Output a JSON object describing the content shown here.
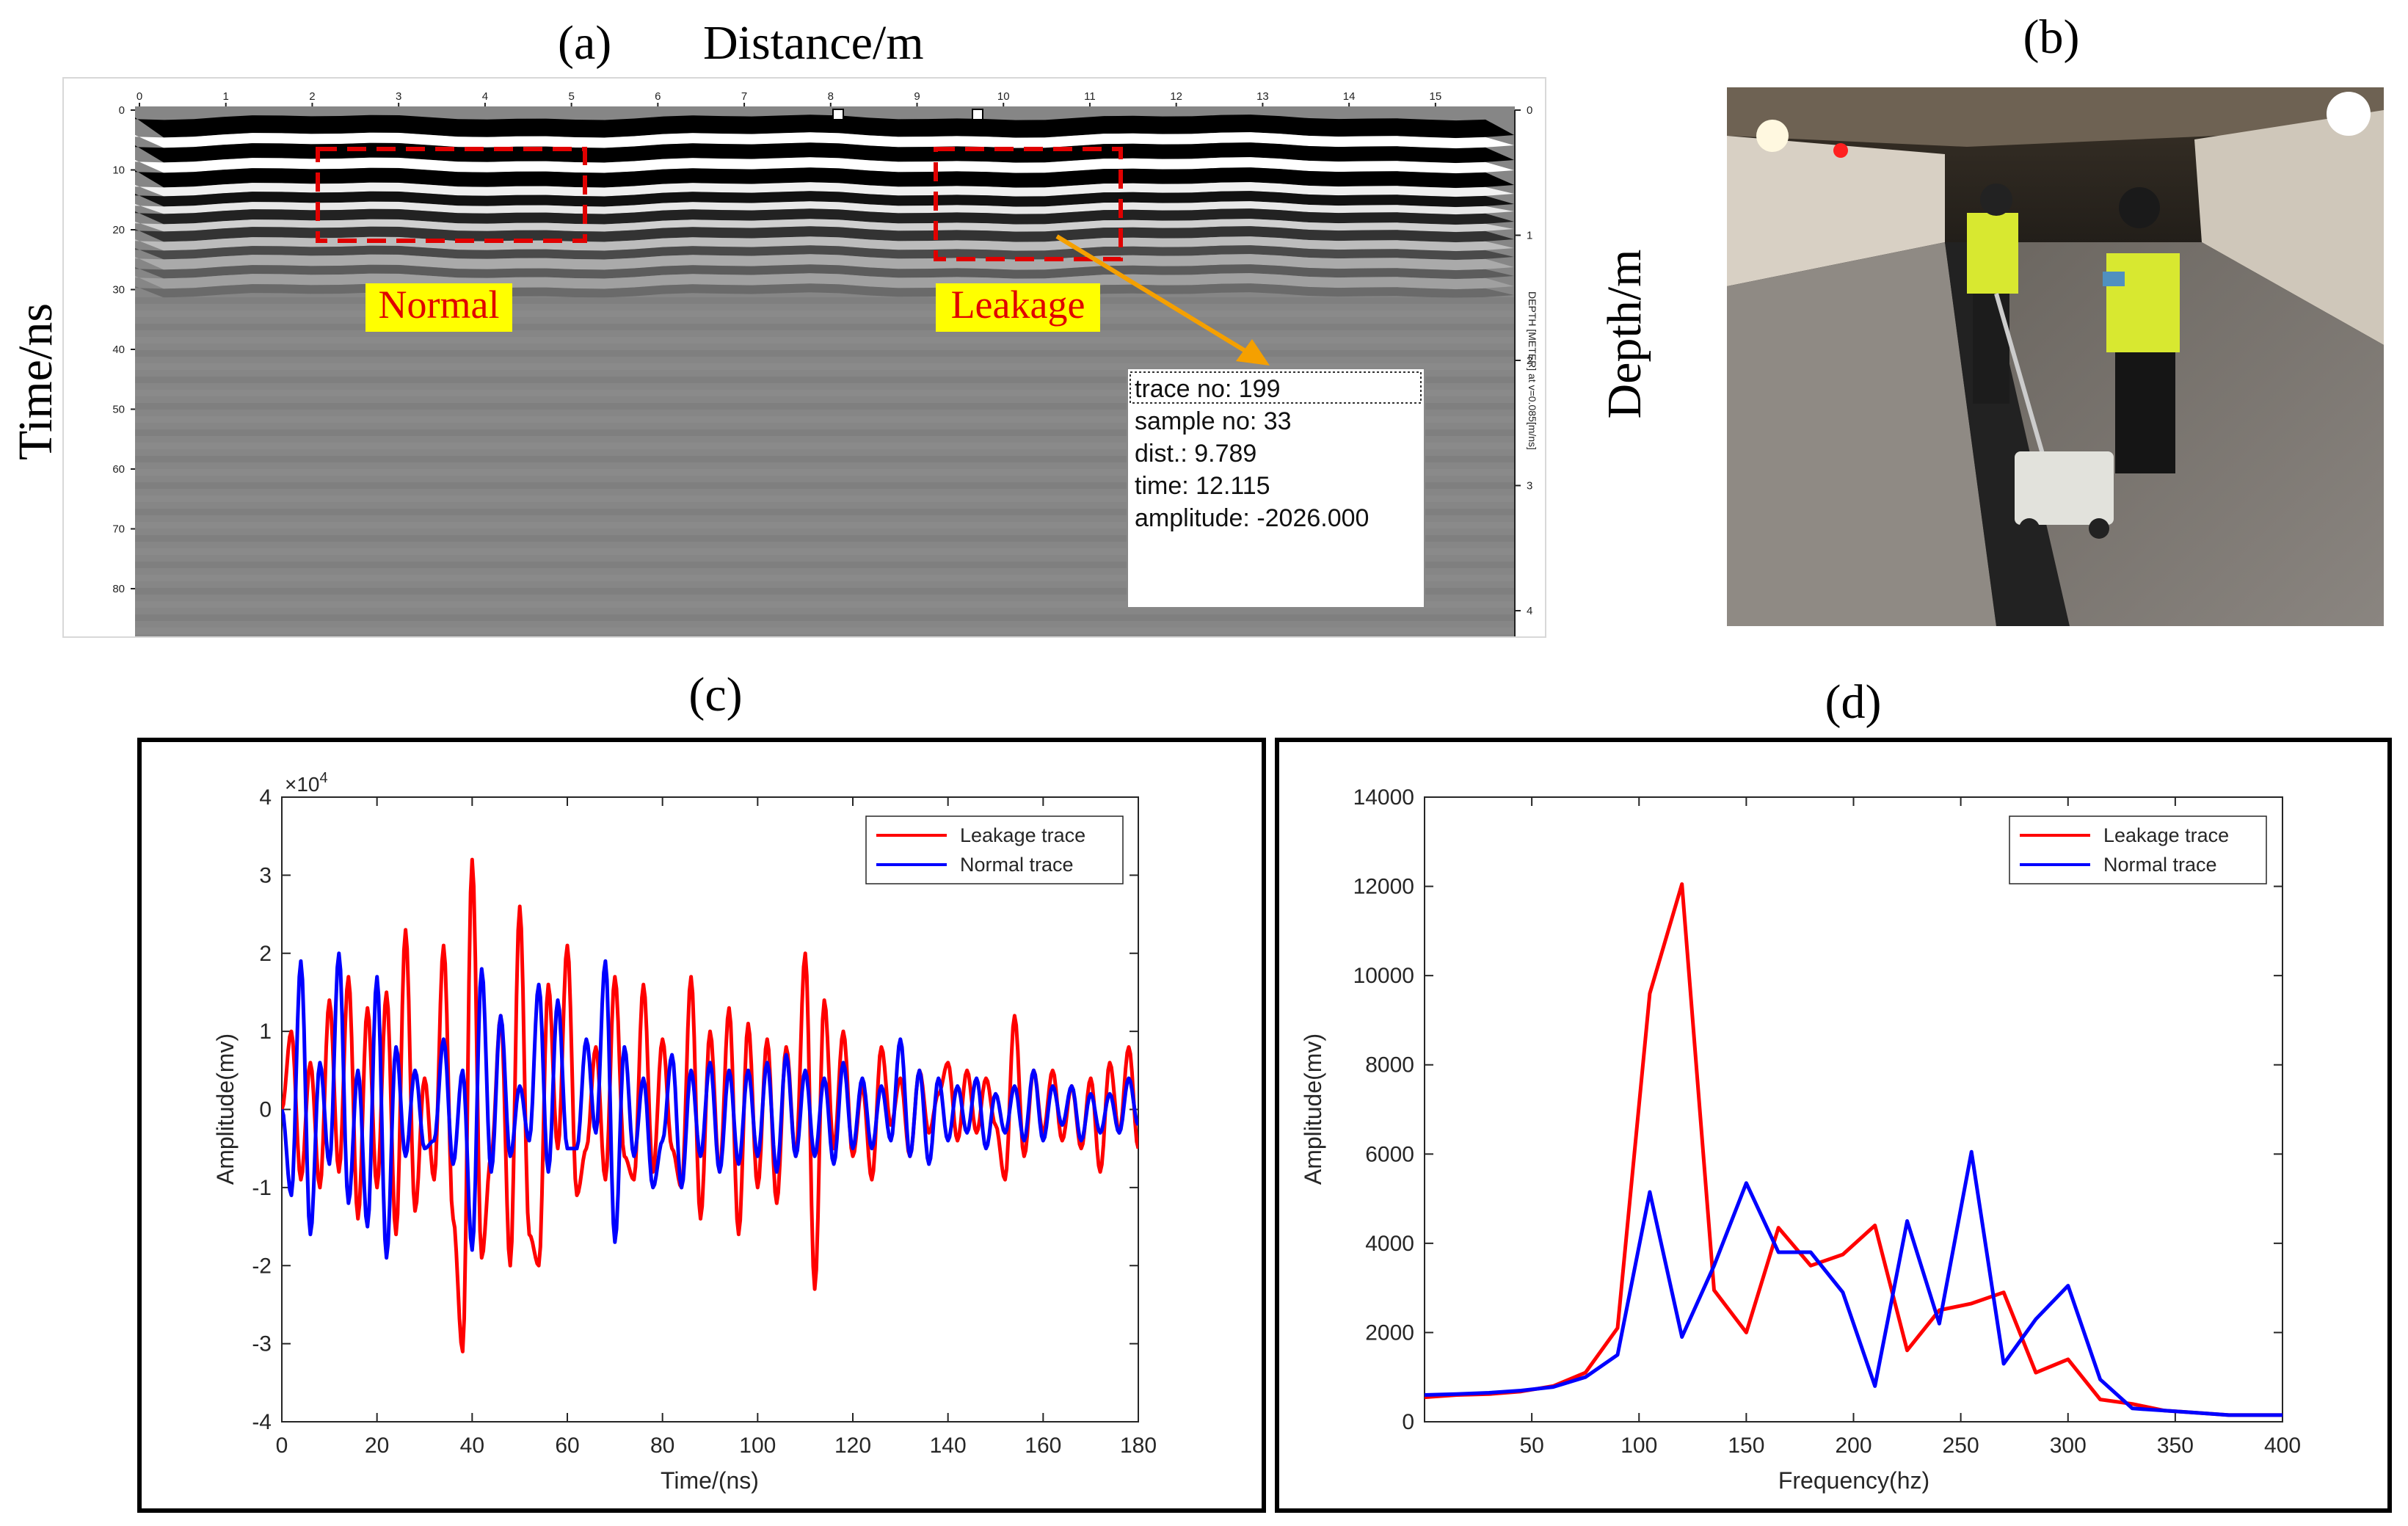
{
  "panels": {
    "a": "(a)",
    "b": "(b)",
    "c": "(c)",
    "d": "(d)"
  },
  "gpr": {
    "top_label": "Distance/m",
    "left_label": "Time/ns",
    "right_label": "Depth/m",
    "right_axis_caption": "DEPTH [METER] at v=0.085[m/ns]",
    "distance_ticks": [
      "0",
      "1",
      "2",
      "3",
      "4",
      "5",
      "6",
      "7",
      "8",
      "9",
      "10",
      "11",
      "12",
      "13",
      "14",
      "15"
    ],
    "time_ticks": [
      "0",
      "10",
      "20",
      "30",
      "40",
      "50",
      "60",
      "70",
      "80"
    ],
    "depth_ticks": [
      "0",
      "1",
      "2",
      "3",
      "4"
    ],
    "normal_label": "Normal",
    "leakage_label": "Leakage",
    "info_box": {
      "trace": "trace no: 199",
      "sample": "sample no: 33",
      "dist": "dist.: 9.789",
      "time": "time: 12.115",
      "amplitude": "amplitude: -2026.000"
    },
    "colors": {
      "box": "#e00000",
      "tag_bg": "#ffff00",
      "arrow": "#f5a000"
    }
  },
  "photo": {
    "description_visible": false
  },
  "chart_data": [
    {
      "type": "line",
      "xlabel": "Time/(ns)",
      "ylabel": "Amplitude(mv)",
      "exponent_label": "×10",
      "exponent_power": "4",
      "xlim": [
        0,
        180
      ],
      "ylim": [
        -4,
        4
      ],
      "xticks": [
        0,
        20,
        40,
        60,
        80,
        100,
        120,
        140,
        160,
        180
      ],
      "yticks": [
        -4,
        -3,
        -2,
        -1,
        0,
        1,
        2,
        3,
        4
      ],
      "legend_position": "top-right",
      "series": [
        {
          "name": "Leakage trace",
          "color": "#ff0000",
          "x": [
            0,
            2,
            4,
            6,
            8,
            10,
            12,
            14,
            16,
            18,
            20,
            22,
            24,
            26,
            28,
            30,
            32,
            34,
            36,
            38,
            40,
            42,
            44,
            46,
            48,
            50,
            52,
            54,
            56,
            58,
            60,
            62,
            64,
            66,
            68,
            70,
            72,
            74,
            76,
            78,
            80,
            82,
            84,
            86,
            88,
            90,
            92,
            94,
            96,
            98,
            100,
            102,
            104,
            106,
            108,
            110,
            112,
            114,
            116,
            118,
            120,
            122,
            124,
            126,
            128,
            130,
            132,
            134,
            136,
            138,
            140,
            142,
            144,
            146,
            148,
            150,
            152,
            154,
            156,
            158,
            160,
            162,
            164,
            166,
            168,
            170,
            172,
            174,
            176,
            178,
            180
          ],
          "values": [
            0.0,
            1.0,
            -0.9,
            0.6,
            -1.0,
            1.4,
            -0.8,
            1.7,
            -1.4,
            1.3,
            -1.0,
            1.5,
            -1.6,
            2.3,
            -1.3,
            0.4,
            -0.9,
            2.1,
            -1.4,
            -3.1,
            3.2,
            -1.9,
            -0.6,
            1.2,
            -2.0,
            2.6,
            -1.6,
            -2.0,
            1.6,
            -0.5,
            2.1,
            -1.1,
            -0.5,
            0.8,
            -0.9,
            1.7,
            -0.6,
            -0.9,
            1.6,
            -0.8,
            0.9,
            -0.5,
            -1.0,
            1.7,
            -1.4,
            1.0,
            -0.8,
            1.3,
            -1.6,
            1.1,
            -1.0,
            0.9,
            -1.2,
            0.8,
            -0.6,
            2.0,
            -2.3,
            1.4,
            -0.5,
            1.0,
            -0.6,
            0.3,
            -0.9,
            0.8,
            -0.2,
            0.4,
            -0.6,
            0.5,
            -0.3,
            0.2,
            0.6,
            -0.4,
            0.5,
            -0.3,
            0.4,
            -0.2,
            -0.9,
            1.2,
            -0.6,
            0.5,
            -0.3,
            0.5,
            -0.4,
            0.3,
            -0.5,
            0.4,
            -0.8,
            0.6,
            -0.3,
            0.8,
            -0.5
          ]
        },
        {
          "name": "Normal trace",
          "color": "#0000ff",
          "x": [
            0,
            2,
            4,
            6,
            8,
            10,
            12,
            14,
            16,
            18,
            20,
            22,
            24,
            26,
            28,
            30,
            32,
            34,
            36,
            38,
            40,
            42,
            44,
            46,
            48,
            50,
            52,
            54,
            56,
            58,
            60,
            62,
            64,
            66,
            68,
            70,
            72,
            74,
            76,
            78,
            80,
            82,
            84,
            86,
            88,
            90,
            92,
            94,
            96,
            98,
            100,
            102,
            104,
            106,
            108,
            110,
            112,
            114,
            116,
            118,
            120,
            122,
            124,
            126,
            128,
            130,
            132,
            134,
            136,
            138,
            140,
            142,
            144,
            146,
            148,
            150,
            152,
            154,
            156,
            158,
            160,
            162,
            164,
            166,
            168,
            170,
            172,
            174,
            176,
            178,
            180
          ],
          "values": [
            0.0,
            -1.1,
            1.9,
            -1.6,
            0.6,
            -0.7,
            2.0,
            -1.2,
            0.5,
            -1.5,
            1.7,
            -1.9,
            0.8,
            -0.6,
            0.5,
            -0.5,
            -0.4,
            0.9,
            -0.7,
            0.5,
            -1.8,
            1.8,
            -0.8,
            1.2,
            -0.6,
            0.3,
            -0.4,
            1.6,
            -0.8,
            1.4,
            -0.5,
            -0.5,
            0.9,
            -0.3,
            1.9,
            -1.7,
            0.8,
            -0.6,
            0.4,
            -1.0,
            -0.4,
            0.7,
            -1.0,
            0.5,
            -0.6,
            0.6,
            -0.8,
            0.5,
            -0.7,
            0.5,
            -0.6,
            0.6,
            -0.8,
            0.7,
            -0.6,
            0.5,
            -0.6,
            0.4,
            -0.7,
            0.6,
            -0.5,
            0.4,
            -0.5,
            0.3,
            -0.4,
            0.9,
            -0.6,
            0.5,
            -0.7,
            0.4,
            -0.4,
            0.3,
            -0.3,
            0.4,
            -0.5,
            0.2,
            -0.3,
            0.3,
            -0.4,
            0.5,
            -0.4,
            0.3,
            -0.2,
            0.3,
            -0.4,
            0.2,
            -0.3,
            0.2,
            -0.3,
            0.4,
            -0.2
          ]
        }
      ]
    },
    {
      "type": "line",
      "xlabel": "Frequency(hz)",
      "ylabel": "Amplitude(mv)",
      "xlim": [
        0,
        400
      ],
      "ylim": [
        0,
        14000
      ],
      "xticks": [
        50,
        100,
        150,
        200,
        250,
        300,
        350,
        400
      ],
      "yticks": [
        0,
        2000,
        4000,
        6000,
        8000,
        10000,
        12000,
        14000
      ],
      "legend_position": "top-right",
      "series": [
        {
          "name": "Leakage trace",
          "color": "#ff0000",
          "x": [
            0,
            15,
            30,
            45,
            60,
            75,
            90,
            105,
            120,
            135,
            150,
            165,
            180,
            195,
            210,
            225,
            240,
            255,
            270,
            285,
            300,
            315,
            330,
            345,
            360,
            375,
            400
          ],
          "values": [
            550,
            600,
            620,
            680,
            800,
            1100,
            2100,
            9600,
            12050,
            2950,
            2000,
            4350,
            3500,
            3750,
            4400,
            1600,
            2500,
            2650,
            2900,
            1100,
            1400,
            500,
            400,
            250,
            200,
            150,
            150
          ]
        },
        {
          "name": "Normal trace",
          "color": "#0000ff",
          "x": [
            0,
            15,
            30,
            45,
            60,
            75,
            90,
            105,
            120,
            135,
            150,
            165,
            180,
            195,
            210,
            225,
            240,
            255,
            270,
            285,
            300,
            315,
            330,
            345,
            360,
            375,
            400
          ],
          "values": [
            600,
            620,
            650,
            700,
            780,
            1000,
            1500,
            5150,
            1900,
            3500,
            5350,
            3800,
            3800,
            2900,
            800,
            4500,
            2200,
            6050,
            1300,
            2300,
            3050,
            950,
            300,
            250,
            200,
            150,
            150
          ]
        }
      ]
    }
  ]
}
